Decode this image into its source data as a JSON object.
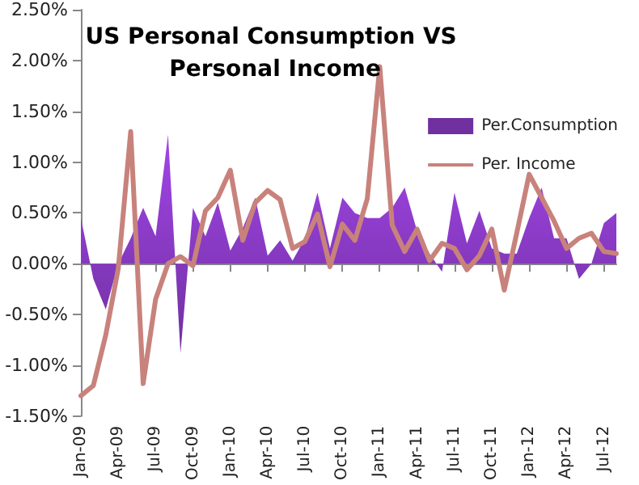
{
  "chart_data": {
    "type": "area",
    "title": "US Personal Consumption VS Personal Income",
    "categories": [
      "Jan-09",
      null,
      null,
      "Apr-09",
      null,
      null,
      "Jul-09",
      null,
      null,
      "Oct-09",
      null,
      null,
      "Jan-10",
      null,
      null,
      "Apr-10",
      null,
      null,
      "Jul-10",
      null,
      null,
      "Oct-10",
      null,
      null,
      "Jan-11",
      null,
      null,
      "Apr-11",
      null,
      null,
      "Jul-11",
      null,
      null,
      "Oct-11",
      null,
      null,
      "Jan-12",
      null,
      null,
      "Apr-12",
      null,
      null,
      "Jul-12",
      null
    ],
    "series": [
      {
        "name": "Per.Consumption",
        "color": "#7030a0",
        "values": [
          0.45,
          -0.15,
          -0.45,
          0.0,
          0.25,
          0.55,
          0.27,
          1.27,
          -0.88,
          0.55,
          0.27,
          0.6,
          0.13,
          0.35,
          0.65,
          0.08,
          0.23,
          0.03,
          0.25,
          0.7,
          0.15,
          0.65,
          0.5,
          0.45,
          0.45,
          0.55,
          0.75,
          0.32,
          0.1,
          -0.08,
          0.7,
          0.2,
          0.52,
          0.15,
          0.1,
          0.1,
          0.45,
          0.75,
          0.25,
          0.25,
          -0.15,
          0.0,
          0.4,
          0.5
        ]
      },
      {
        "name": "Per. Income",
        "type": "line",
        "color": "#c8827c",
        "values": [
          -1.3,
          -1.2,
          -0.7,
          -0.05,
          1.3,
          -1.18,
          -0.35,
          0.0,
          0.07,
          -0.02,
          0.52,
          0.65,
          0.92,
          0.23,
          0.6,
          0.72,
          0.63,
          0.15,
          0.22,
          0.49,
          -0.03,
          0.39,
          0.23,
          0.64,
          1.94,
          0.38,
          0.12,
          0.34,
          0.03,
          0.2,
          0.15,
          -0.06,
          0.08,
          0.34,
          -0.26,
          0.3,
          0.88,
          0.65,
          0.42,
          0.15,
          0.25,
          0.3,
          0.12,
          0.1
        ]
      }
    ],
    "ylim": [
      -1.5,
      2.5
    ],
    "yticks": [
      {
        "value": -1.5,
        "label": "-1.50%"
      },
      {
        "value": -1,
        "label": "-1.00%"
      },
      {
        "value": -0.5,
        "label": "-0.50%"
      },
      {
        "value": 0,
        "label": "0.00%"
      },
      {
        "value": 0.5,
        "label": "0.50%"
      },
      {
        "value": 1,
        "label": "1.00%"
      },
      {
        "value": 1.5,
        "label": "1.50%"
      },
      {
        "value": 2,
        "label": "2.00%"
      },
      {
        "value": 2.5,
        "label": "2.50%"
      }
    ],
    "legend": "top right",
    "marker": "none",
    "line_style": "solid"
  }
}
